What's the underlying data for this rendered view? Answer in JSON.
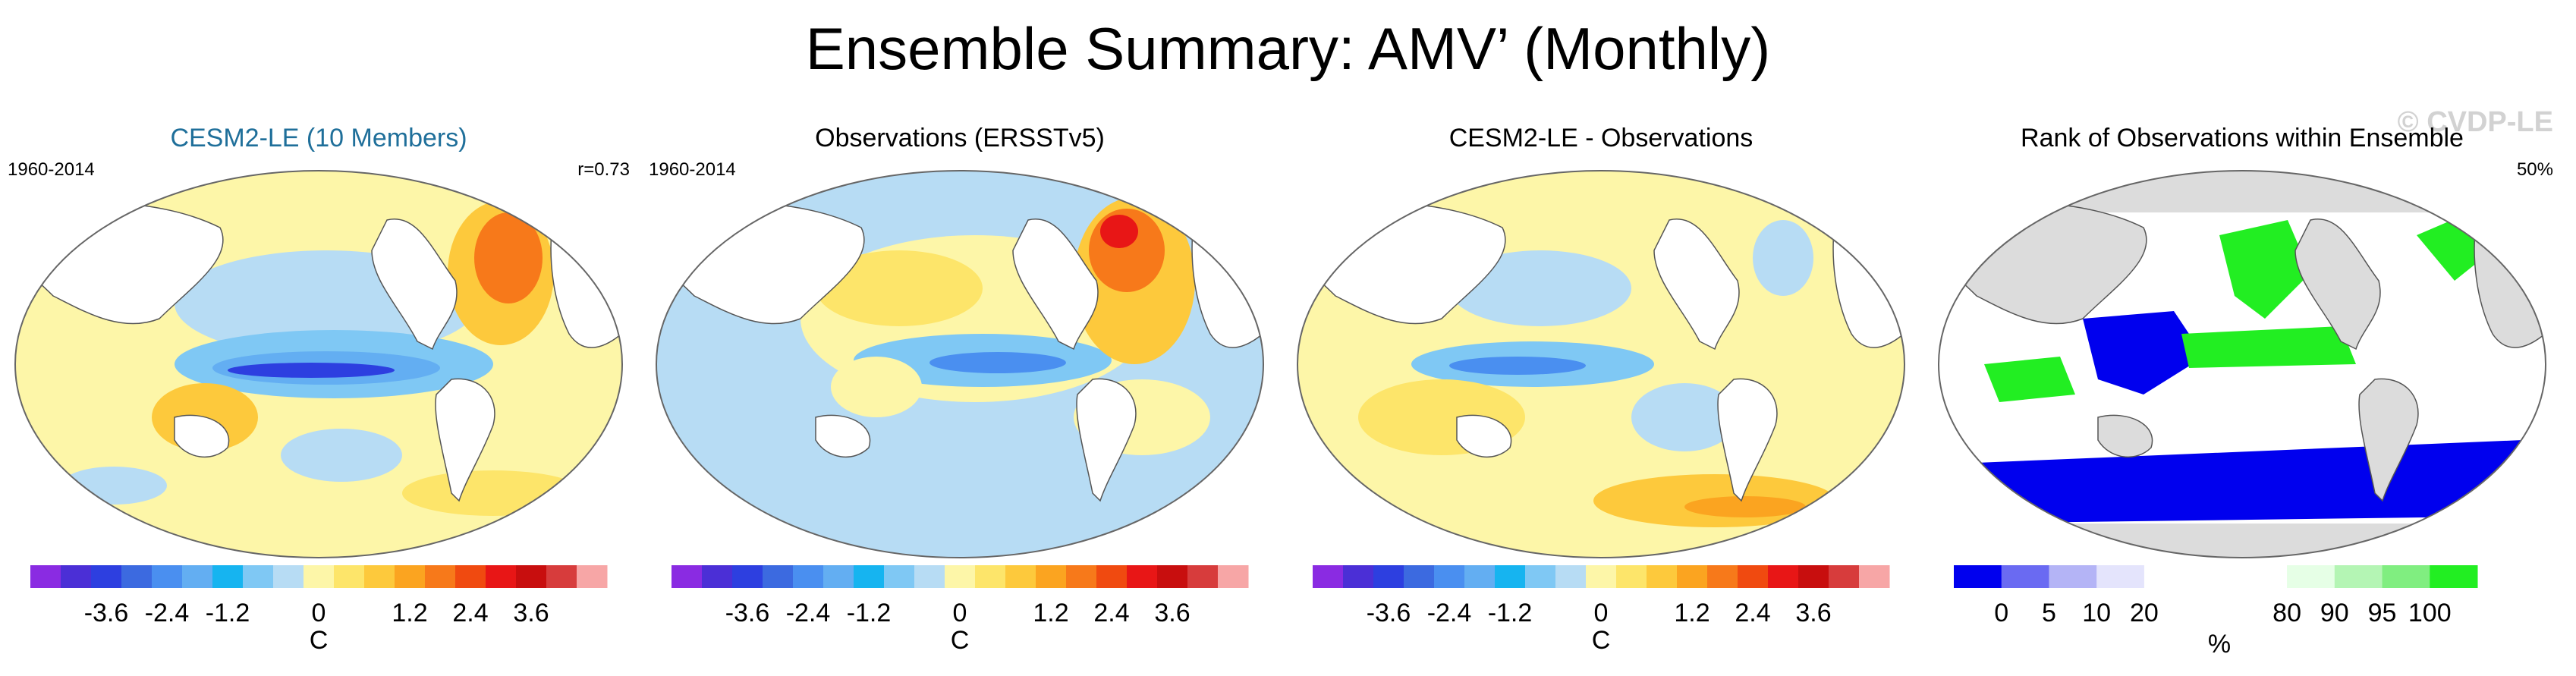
{
  "title": "Ensemble Summary: AMV’ (Monthly)",
  "watermark": "© CVDP-LE",
  "colors": {
    "diverging": [
      "#8a2be2",
      "#4b2fd6",
      "#2d3fe0",
      "#3c6ae0",
      "#4a8ff0",
      "#63aef2",
      "#16b4f0",
      "#7fc8f4",
      "#b7dcf4",
      "#fdf6a8",
      "#fde56a",
      "#fdc93c",
      "#fba420",
      "#f7791a",
      "#f04a10",
      "#e81616",
      "#c80e0e",
      "#d73c3c",
      "#f7a6a6"
    ],
    "rank": [
      "#0000ee",
      "#6a6af2",
      "#b4b4f6",
      "#e4e4fc",
      "#ffffff",
      "#ffffff",
      "#ffffff",
      "#e6ffe6",
      "#b4f5b4",
      "#80ee80",
      "#22ee22"
    ]
  },
  "panels": [
    {
      "title": "CESM2-LE (10 Members)",
      "period": "1960-2014",
      "stat": "r=0.73",
      "unit_label": "C",
      "tick_labels": [
        "-3.6",
        "-2.4",
        "-1.2",
        "0",
        "1.2",
        "2.4",
        "3.6"
      ]
    },
    {
      "title": "Observations (ERSSTv5)",
      "period": "1960-2014",
      "stat": "",
      "unit_label": "C",
      "tick_labels": [
        "-3.6",
        "-2.4",
        "-1.2",
        "0",
        "1.2",
        "2.4",
        "3.6"
      ]
    },
    {
      "title": "CESM2-LE - Observations",
      "period": "",
      "stat": "",
      "unit_label": "C",
      "tick_labels": [
        "-3.6",
        "-2.4",
        "-1.2",
        "0",
        "1.2",
        "2.4",
        "3.6"
      ]
    },
    {
      "title": "Rank of Observations within Ensemble",
      "period": "",
      "stat": "50%",
      "unit_label": "%",
      "tick_labels": [
        "0",
        "5",
        "10",
        "20",
        "80",
        "90",
        "95",
        "100"
      ]
    }
  ],
  "chart_data": [
    {
      "type": "heatmap",
      "title": "CESM2-LE (10 Members)",
      "period": "1960-2014",
      "pattern_correlation": 0.73,
      "colorbar": {
        "unit": "C",
        "min": -4.2,
        "max": 4.2,
        "levels": [
          -3.6,
          -2.4,
          -1.2,
          0,
          1.2,
          2.4,
          3.6
        ],
        "ticks": [
          -3.6,
          -2.4,
          -1.2,
          0,
          1.2,
          2.4,
          3.6
        ]
      }
    },
    {
      "type": "heatmap",
      "title": "Observations (ERSSTv5)",
      "period": "1960-2014",
      "colorbar": {
        "unit": "C",
        "min": -4.2,
        "max": 4.2,
        "ticks": [
          -3.6,
          -2.4,
          -1.2,
          0,
          1.2,
          2.4,
          3.6
        ]
      }
    },
    {
      "type": "heatmap",
      "title": "CESM2-LE - Observations",
      "colorbar": {
        "unit": "C",
        "min": -4.2,
        "max": 4.2,
        "ticks": [
          -3.6,
          -2.4,
          -1.2,
          0,
          1.2,
          2.4,
          3.6
        ]
      }
    },
    {
      "type": "heatmap",
      "title": "Rank of Observations within Ensemble",
      "summary_percent": 50,
      "colorbar": {
        "unit": "%",
        "ticks": [
          0,
          5,
          10,
          20,
          80,
          90,
          95,
          100
        ]
      }
    }
  ]
}
